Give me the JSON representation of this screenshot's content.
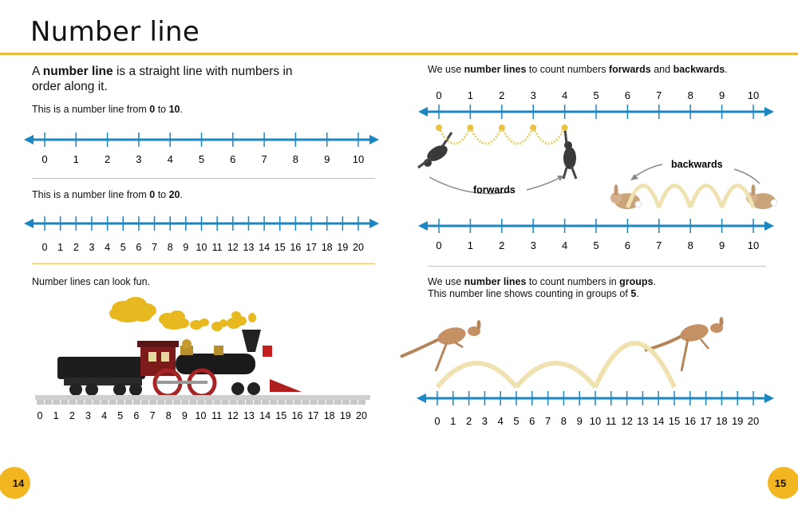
{
  "page": {
    "title": "Number line",
    "page_left": "14",
    "page_right": "15",
    "accent": "#e8b93c",
    "line_color": "#1a86c2"
  },
  "left": {
    "intro": {
      "a": "A ",
      "b": "number line",
      "c": " is a straight line with numbers in order along it."
    },
    "line10": {
      "a": "This is a number line from ",
      "b1": "0",
      "m": " to ",
      "b2": "10",
      "e": ".",
      "ticks": [
        0,
        1,
        2,
        3,
        4,
        5,
        6,
        7,
        8,
        9,
        10
      ]
    },
    "line20": {
      "a": "This is a number line from ",
      "b1": "0",
      "m": " to ",
      "b2": "20",
      "e": ".",
      "ticks": [
        0,
        1,
        2,
        3,
        4,
        5,
        6,
        7,
        8,
        9,
        10,
        11,
        12,
        13,
        14,
        15,
        16,
        17,
        18,
        19,
        20
      ]
    },
    "fun": {
      "text": "Number lines can look fun.",
      "track_ticks": [
        0,
        1,
        2,
        3,
        4,
        5,
        6,
        7,
        8,
        9,
        10,
        11,
        12,
        13,
        14,
        15,
        16,
        17,
        18,
        19,
        20
      ]
    }
  },
  "right": {
    "count": {
      "a": "We use ",
      "b1": "number lines",
      "m1": " to count numbers ",
      "b2": "forwards",
      "m2": " and ",
      "b3": "backwards",
      "e": ".",
      "ticks": [
        0,
        1,
        2,
        3,
        4,
        5,
        6,
        7,
        8,
        9,
        10
      ],
      "forwards_label": "forwards",
      "backwards_label": "backwards",
      "forward_hops": [
        0,
        1,
        2,
        3,
        4
      ],
      "backward_hops": [
        10,
        9,
        8,
        7,
        6
      ]
    },
    "groups": {
      "l1a": "We use ",
      "l1b": "number lines",
      "l1c": " to count numbers in ",
      "l1d": "groups",
      "l1e": ".",
      "l2a": "This number line shows counting in groups of ",
      "l2b": "5",
      "l2c": ".",
      "ticks": [
        0,
        1,
        2,
        3,
        4,
        5,
        6,
        7,
        8,
        9,
        10,
        11,
        12,
        13,
        14,
        15,
        16,
        17,
        18,
        19,
        20
      ],
      "group_hops": [
        0,
        5,
        10,
        15
      ]
    }
  }
}
